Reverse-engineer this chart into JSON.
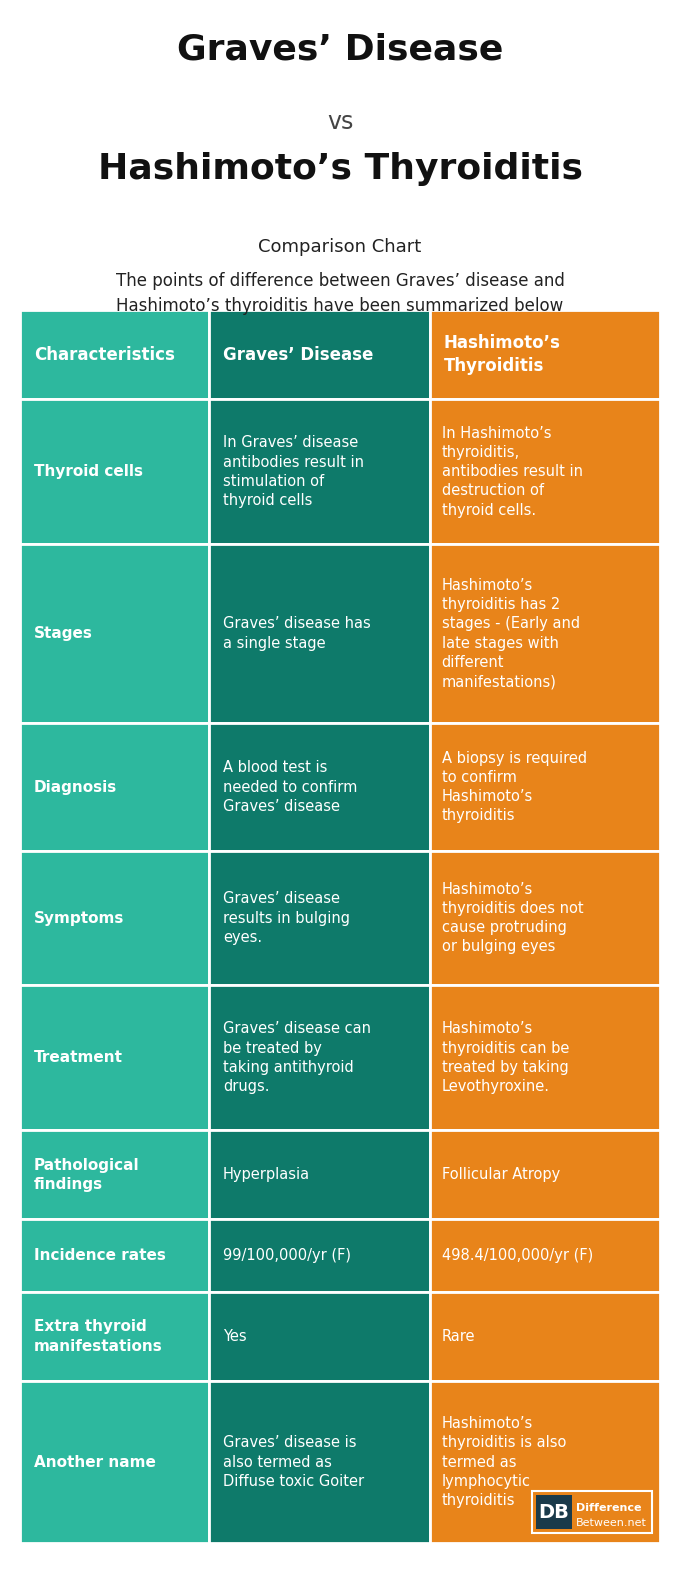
{
  "title_line1": "Graves’ Disease",
  "title_vs": "vs",
  "title_line2": "Hashimoto’s Thyroiditis",
  "subtitle": "Comparison Chart",
  "description": "The points of difference between Graves’ disease and\nHashimoto’s thyroiditis have been summarized below",
  "col_headers": [
    "Characteristics",
    "Graves’ Disease",
    "Hashimoto’s\nThyroiditis"
  ],
  "rows": [
    {
      "characteristic": "Thyroid cells",
      "graves": "In Graves’ disease\nantibodies result in\nstimulation of\nthyroid cells",
      "hashimoto": "In Hashimoto’s\nthyroiditis,\nantibodies result in\ndestruction of\nthyroid cells."
    },
    {
      "characteristic": "Stages",
      "graves": "Graves’ disease has\na single stage",
      "hashimoto": "Hashimoto’s\nthyroiditis has 2\nstages - (Early and\nlate stages with\ndifferent\nmanifestations)"
    },
    {
      "characteristic": "Diagnosis",
      "graves": "A blood test is\nneeded to confirm\nGraves’ disease",
      "hashimoto": "A biopsy is required\nto confirm\nHashimoto’s\nthyroiditis"
    },
    {
      "characteristic": "Symptoms",
      "graves": "Graves’ disease\nresults in bulging\neyes.",
      "hashimoto": "Hashimoto’s\nthyroiditis does not\ncause protruding\nor bulging eyes"
    },
    {
      "characteristic": "Treatment",
      "graves": "Graves’ disease can\nbe treated by\ntaking antithyroid\ndrugs.",
      "hashimoto": "Hashimoto’s\nthyroiditis can be\ntreated by taking\nLevothyroxine."
    },
    {
      "characteristic": "Pathological\nfindings",
      "graves": "Hyperplasia",
      "hashimoto": "Follicular Atropy"
    },
    {
      "characteristic": "Incidence rates",
      "graves": "99/100,000/yr (F)",
      "hashimoto": "498.4/100,000/yr (F)"
    },
    {
      "characteristic": "Extra thyroid\nmanifestations",
      "graves": "Yes",
      "hashimoto": "Rare"
    },
    {
      "characteristic": "Another name",
      "graves": "Graves’ disease is\nalso termed as\nDiffuse toxic Goiter",
      "hashimoto": "Hashimoto’s\nthyroiditis is also\ntermed as\nlymphocytic\nthyroiditis"
    }
  ],
  "color_teal_dark": "#0e7a6a",
  "color_teal_light": "#2db89e",
  "color_orange": "#e8841a",
  "color_white": "#ffffff",
  "color_bg": "#ffffff",
  "color_title": "#111111",
  "color_vs": "#444444",
  "color_subtitle": "#222222",
  "color_desc": "#222222",
  "color_border": "#ffffff"
}
